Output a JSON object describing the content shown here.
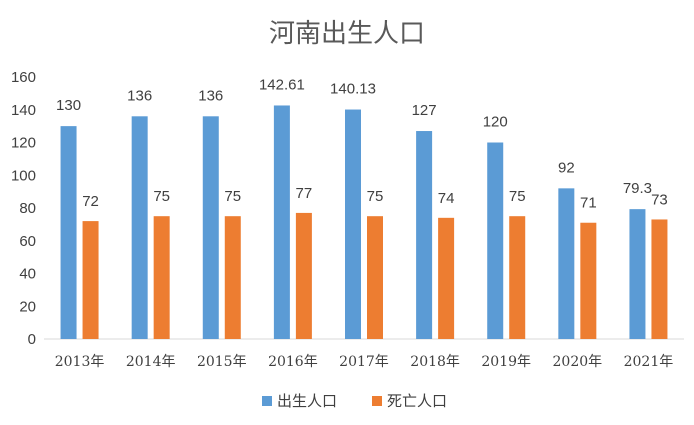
{
  "chart_data": {
    "type": "bar",
    "title": "河南出生人口",
    "categories": [
      "2013年",
      "2014年",
      "2015年",
      "2016年",
      "2017年",
      "2018年",
      "2019年",
      "2020年",
      "2021年"
    ],
    "series": [
      {
        "name": "出生人口",
        "color": "#5B9BD5",
        "values": [
          130,
          136,
          136,
          142.61,
          140.13,
          127,
          120,
          92,
          79.3
        ]
      },
      {
        "name": "死亡人口",
        "color": "#ED7D31",
        "values": [
          72,
          75,
          75,
          77,
          75,
          74,
          75,
          71,
          73
        ]
      }
    ],
    "ylim": [
      0,
      160
    ],
    "yticks": [
      0,
      20,
      40,
      60,
      80,
      100,
      120,
      140,
      160
    ],
    "grid": false,
    "legend": "bottom"
  }
}
